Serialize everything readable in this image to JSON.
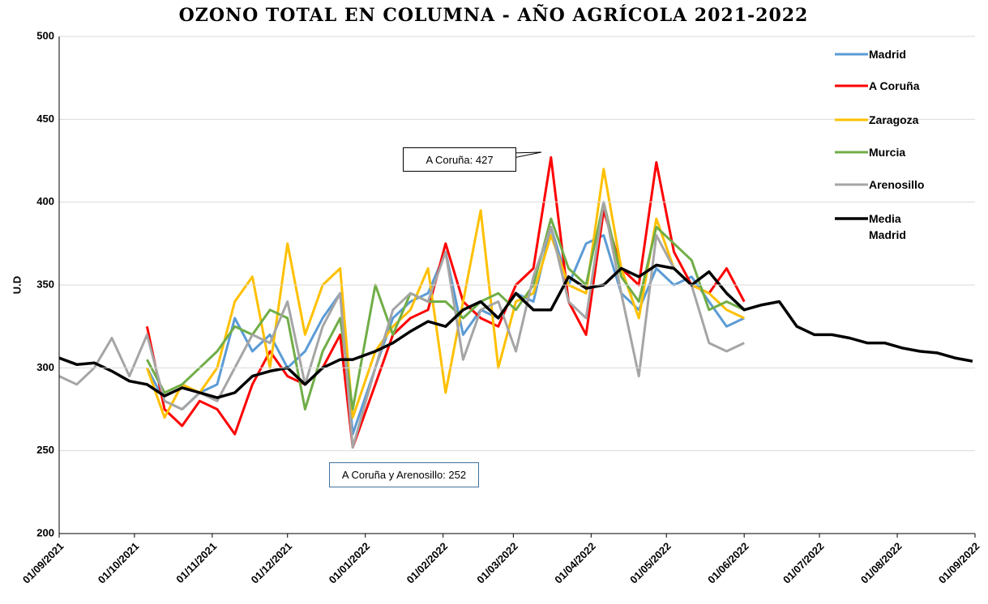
{
  "chart_data": {
    "type": "line",
    "title": "OZONO TOTAL EN COLUMNA - AÑO AGRÍCOLA 2021-2022",
    "y_label": "U.D",
    "annotations": [
      "A Coruña: 427",
      "A Coruña y Arenosillo: 252"
    ],
    "xlim": [
      "2021-09-01",
      "2022-09-01"
    ],
    "xticks": [
      {
        "value": "2021-09-01",
        "label": "01/09/2021"
      },
      {
        "value": "2021-10-01",
        "label": "01/10/2021"
      },
      {
        "value": "2021-11-01",
        "label": "01/11/2021"
      },
      {
        "value": "2021-12-01",
        "label": "01/12/2021"
      },
      {
        "value": "2022-01-01",
        "label": "01/01/2022"
      },
      {
        "value": "2022-02-01",
        "label": "01/02/2022"
      },
      {
        "value": "2022-03-01",
        "label": "01/03/2022"
      },
      {
        "value": "2022-04-01",
        "label": "01/04/2022"
      },
      {
        "value": "2022-05-01",
        "label": "01/05/2022"
      },
      {
        "value": "2022-06-01",
        "label": "01/06/2022"
      },
      {
        "value": "2022-07-01",
        "label": "01/07/2022"
      },
      {
        "value": "2022-08-01",
        "label": "01/08/2022"
      },
      {
        "value": "2022-09-01",
        "label": "01/09/2022"
      }
    ],
    "ylim": [
      200,
      500
    ],
    "yticks": [
      200,
      250,
      300,
      350,
      400,
      450,
      500
    ],
    "grid": true,
    "legend": "right",
    "x": [
      "2021-09-01",
      "2021-09-08",
      "2021-09-15",
      "2021-09-22",
      "2021-09-29",
      "2021-10-06",
      "2021-10-13",
      "2021-10-20",
      "2021-10-27",
      "2021-11-03",
      "2021-11-10",
      "2021-11-17",
      "2021-11-24",
      "2021-12-01",
      "2021-12-08",
      "2021-12-15",
      "2021-12-22",
      "2021-12-27",
      "2022-01-05",
      "2022-01-12",
      "2022-01-19",
      "2022-01-26",
      "2022-02-02",
      "2022-02-09",
      "2022-02-16",
      "2022-02-23",
      "2022-03-02",
      "2022-03-09",
      "2022-03-16",
      "2022-03-23",
      "2022-03-30",
      "2022-04-06",
      "2022-04-13",
      "2022-04-20",
      "2022-04-27",
      "2022-05-04",
      "2022-05-11",
      "2022-05-18",
      "2022-05-25",
      "2022-06-01",
      "2022-06-08",
      "2022-06-15",
      "2022-06-22",
      "2022-06-29",
      "2022-07-06",
      "2022-07-13",
      "2022-07-20",
      "2022-07-27",
      "2022-08-03",
      "2022-08-10",
      "2022-08-17",
      "2022-08-24",
      "2022-08-31"
    ],
    "series": [
      {
        "name": "Madrid",
        "color": "#5b9bd5",
        "width": 3,
        "values": [
          null,
          null,
          null,
          null,
          null,
          300,
          280,
          275,
          285,
          290,
          330,
          310,
          320,
          300,
          310,
          330,
          345,
          260,
          300,
          330,
          340,
          345,
          370,
          320,
          335,
          330,
          345,
          340,
          385,
          350,
          375,
          380,
          345,
          335,
          360,
          350,
          355,
          340,
          325,
          330,
          null,
          null,
          null,
          null,
          null,
          null,
          null,
          null,
          null,
          null,
          null,
          null,
          null
        ]
      },
      {
        "name": "A Coruña",
        "color": "#ff0000",
        "width": 3,
        "values": [
          null,
          null,
          null,
          null,
          null,
          325,
          275,
          265,
          280,
          275,
          260,
          290,
          310,
          295,
          290,
          300,
          320,
          252,
          290,
          320,
          330,
          335,
          375,
          340,
          330,
          325,
          350,
          360,
          427,
          340,
          320,
          395,
          360,
          350,
          424,
          370,
          350,
          345,
          360,
          340,
          null,
          null,
          null,
          null,
          null,
          null,
          null,
          null,
          null,
          null,
          null,
          null,
          null
        ]
      },
      {
        "name": "Zaragoza",
        "color": "#ffc000",
        "width": 3,
        "values": [
          null,
          null,
          null,
          null,
          null,
          300,
          270,
          290,
          285,
          300,
          340,
          355,
          300,
          375,
          320,
          350,
          360,
          270,
          310,
          325,
          335,
          360,
          285,
          340,
          395,
          300,
          340,
          345,
          380,
          350,
          345,
          420,
          360,
          330,
          390,
          360,
          350,
          345,
          335,
          330,
          null,
          null,
          null,
          null,
          null,
          null,
          null,
          null,
          null,
          null,
          null,
          null,
          null
        ]
      },
      {
        "name": "Murcia",
        "color": "#70ad47",
        "width": 3,
        "values": [
          null,
          null,
          null,
          null,
          null,
          305,
          285,
          290,
          300,
          310,
          325,
          320,
          335,
          330,
          275,
          310,
          330,
          275,
          350,
          320,
          345,
          340,
          340,
          330,
          340,
          345,
          335,
          350,
          390,
          360,
          350,
          400,
          355,
          340,
          385,
          375,
          365,
          335,
          340,
          335,
          null,
          null,
          null,
          null,
          null,
          null,
          null,
          null,
          null,
          null,
          null,
          null,
          null
        ]
      },
      {
        "name": "Arenosillo",
        "color": "#a5a5a5",
        "width": 3,
        "values": [
          295,
          290,
          300,
          318,
          295,
          320,
          280,
          275,
          285,
          280,
          300,
          320,
          315,
          340,
          290,
          325,
          345,
          252,
          300,
          335,
          345,
          340,
          370,
          305,
          335,
          340,
          310,
          355,
          385,
          340,
          330,
          400,
          345,
          295,
          380,
          360,
          350,
          315,
          310,
          315,
          null,
          null,
          null,
          null,
          null,
          null,
          null,
          null,
          null,
          null,
          null,
          null,
          null
        ]
      },
      {
        "name": "Media Madrid",
        "color": "#000000",
        "width": 3.5,
        "values": [
          306,
          302,
          303,
          298,
          292,
          290,
          283,
          288,
          285,
          282,
          285,
          295,
          298,
          300,
          290,
          300,
          305,
          305,
          310,
          315,
          322,
          328,
          325,
          335,
          340,
          330,
          345,
          335,
          335,
          355,
          348,
          350,
          360,
          355,
          362,
          360,
          350,
          358,
          345,
          335,
          338,
          340,
          325,
          320,
          320,
          318,
          315,
          315,
          312,
          310,
          309,
          306,
          304
        ]
      }
    ]
  }
}
